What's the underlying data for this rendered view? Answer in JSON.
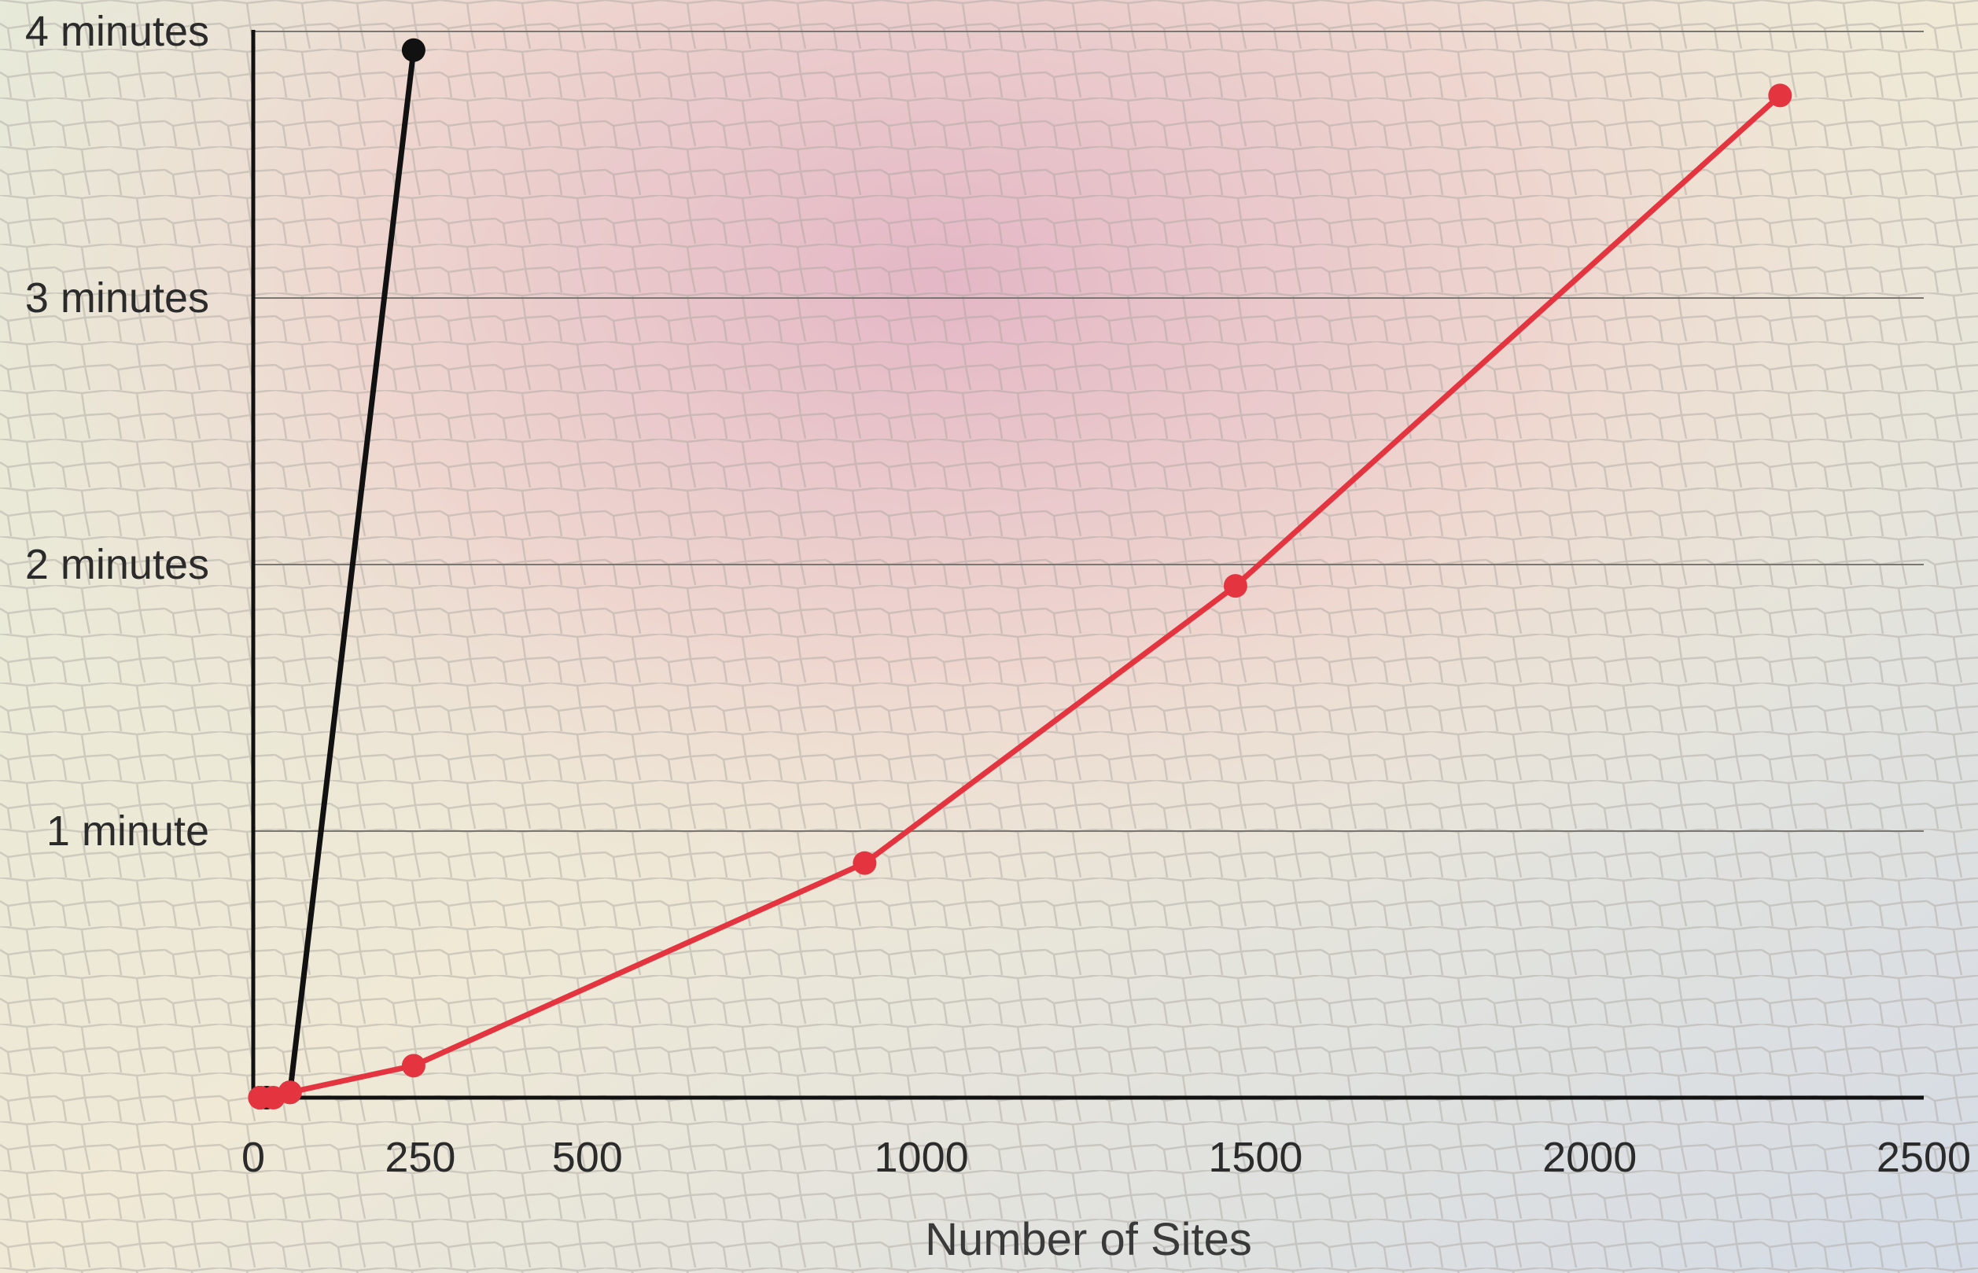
{
  "chart_data": {
    "type": "line",
    "title": "",
    "xlabel": "Number of Sites",
    "ylabel": "",
    "xlim": [
      0,
      2500
    ],
    "ylim": [
      0,
      4
    ],
    "y_unit": "minutes",
    "x_ticks": [
      "0",
      "250",
      "500",
      "1000",
      "1500",
      "2000",
      "2500"
    ],
    "x_tick_values": [
      0,
      250,
      500,
      1000,
      1500,
      2000,
      2500
    ],
    "y_ticks": [
      "4 minutes",
      "3 minutes",
      "2 minutes",
      "1 minute"
    ],
    "y_tick_values": [
      4,
      3,
      2,
      1
    ],
    "grid": "horizontal",
    "legend": "none",
    "series": [
      {
        "color": "#111111",
        "points": [
          {
            "x": 10,
            "y": 0.0
          },
          {
            "x": 20,
            "y": 0.0
          },
          {
            "x": 55,
            "y": 0.02
          },
          {
            "x": 240,
            "y": 3.93
          }
        ]
      },
      {
        "color": "#e3343f",
        "points": [
          {
            "x": 10,
            "y": 0.0
          },
          {
            "x": 30,
            "y": 0.0
          },
          {
            "x": 55,
            "y": 0.02
          },
          {
            "x": 240,
            "y": 0.12
          },
          {
            "x": 915,
            "y": 0.88
          },
          {
            "x": 1470,
            "y": 1.92
          },
          {
            "x": 2285,
            "y": 3.76
          }
        ]
      }
    ]
  }
}
